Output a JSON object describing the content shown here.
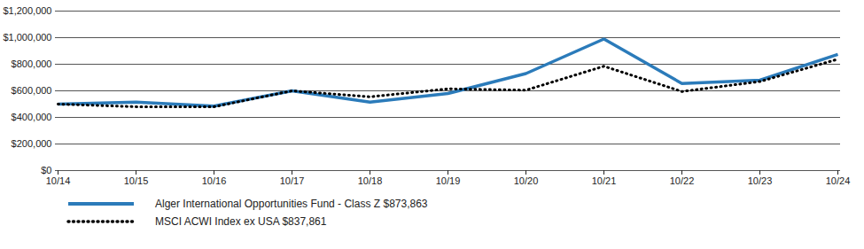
{
  "chart_data": {
    "type": "line",
    "categories": [
      "10/14",
      "10/15",
      "10/16",
      "10/17",
      "10/18",
      "10/19",
      "10/20",
      "10/21",
      "10/22",
      "10/23",
      "10/24"
    ],
    "series": [
      {
        "name": "Alger International Opportunities Fund - Class Z $873,863",
        "color": "#2b7bba",
        "line_style": "solid",
        "values": [
          500000,
          515000,
          485000,
          600000,
          515000,
          580000,
          730000,
          990000,
          655000,
          680000,
          873863
        ]
      },
      {
        "name": "MSCI ACWI Index ex USA $837,861",
        "color": "#000000",
        "line_style": "dotted",
        "values": [
          500000,
          480000,
          480000,
          600000,
          555000,
          615000,
          605000,
          785000,
          595000,
          670000,
          837861
        ]
      }
    ],
    "ylim": [
      0,
      1200000
    ],
    "yticks": [
      {
        "value": 0,
        "label": "$0"
      },
      {
        "value": 200000,
        "label": "$200,000"
      },
      {
        "value": 400000,
        "label": "$400,000"
      },
      {
        "value": 600000,
        "label": "$600,000"
      },
      {
        "value": 800000,
        "label": "$800,000"
      },
      {
        "value": 1000000,
        "label": "$1,000,000"
      },
      {
        "value": 1200000,
        "label": "$1,200,000"
      }
    ],
    "grid": true,
    "legend": "bottom"
  }
}
